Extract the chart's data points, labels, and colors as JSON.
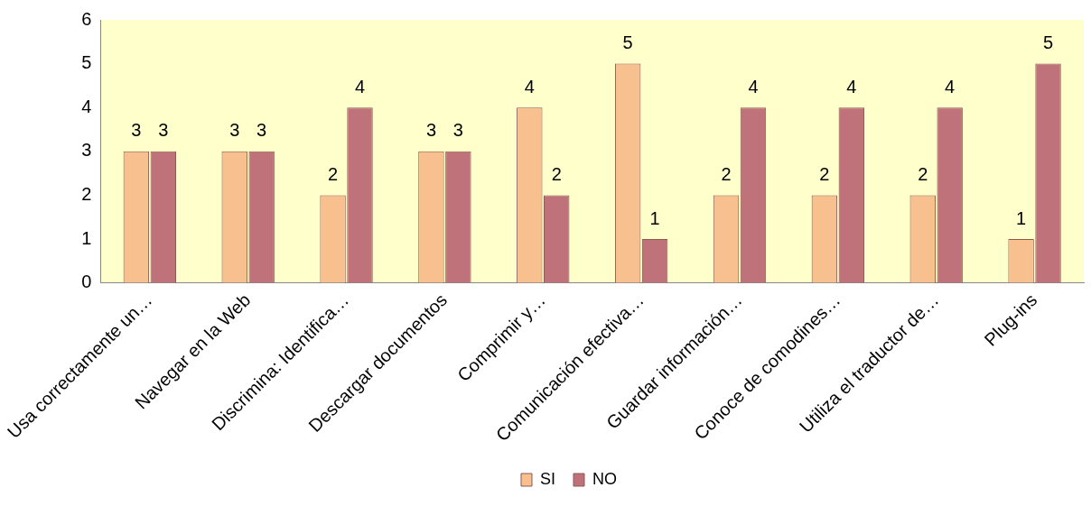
{
  "chart_data": {
    "type": "bar",
    "categories": [
      "Usa correctamente un…",
      "Navegar en la Web",
      "Discrimina: Identifica…",
      "Descargar documentos",
      "Comprimir y…",
      "Comunicación efectiva…",
      "Guardar información…",
      "Conoce de comodines…",
      "Utiliza el traductor de…",
      "Plug-ins"
    ],
    "series": [
      {
        "name": "SI",
        "color": "#f9c08f",
        "values": [
          3,
          3,
          2,
          3,
          4,
          5,
          2,
          2,
          2,
          1
        ]
      },
      {
        "name": "NO",
        "color": "#c0727a",
        "values": [
          3,
          3,
          4,
          3,
          2,
          1,
          4,
          4,
          4,
          5
        ]
      }
    ],
    "ylim": [
      0,
      6
    ],
    "yticks": [
      0,
      1,
      2,
      3,
      4,
      5,
      6
    ],
    "grid": false,
    "legend": "bottom",
    "data_labels": true
  }
}
